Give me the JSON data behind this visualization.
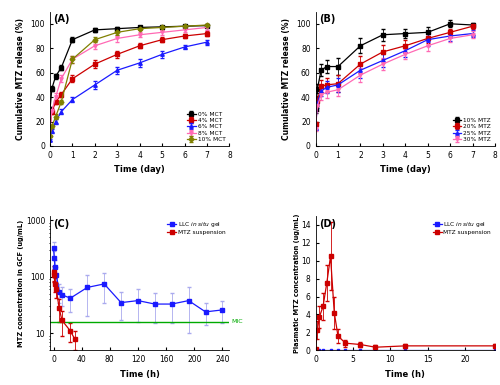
{
  "A": {
    "time": [
      0,
      0.083,
      0.25,
      0.5,
      1,
      2,
      3,
      4,
      5,
      6,
      7
    ],
    "series": {
      "0% MCT": [
        30,
        47,
        57,
        64,
        87,
        95,
        96,
        97,
        97.5,
        98,
        98.5
      ],
      "4% MCT": [
        15,
        28,
        36,
        42,
        55,
        67,
        75,
        82,
        87,
        90,
        92
      ],
      "6% MCT": [
        5,
        12,
        20,
        28,
        38,
        50,
        62,
        68,
        75,
        81,
        85
      ],
      "8% MCT": [
        14,
        29,
        40,
        55,
        71,
        82,
        88,
        91,
        93,
        95,
        97
      ],
      "10% MCT": [
        8,
        16,
        24,
        36,
        71,
        87,
        93,
        96,
        97,
        98,
        99
      ]
    },
    "errors": {
      "0% MCT": [
        2,
        2,
        2,
        2,
        2,
        1.5,
        1.5,
        1,
        1,
        1,
        1
      ],
      "4% MCT": [
        2,
        2,
        2,
        2,
        3,
        3,
        3,
        2,
        2,
        2,
        2
      ],
      "6% MCT": [
        1,
        1.5,
        2,
        2,
        2,
        3,
        3,
        3,
        3,
        2,
        2
      ],
      "8% MCT": [
        2,
        2,
        3,
        3,
        3,
        3,
        3,
        2,
        2,
        2,
        2
      ],
      "10% MCT": [
        1,
        1.5,
        2,
        2,
        3,
        2,
        2,
        1.5,
        1.5,
        1,
        1
      ]
    },
    "colors": [
      "#000000",
      "#cc0000",
      "#1a1aff",
      "#ff69b4",
      "#808000"
    ],
    "markers": [
      "s",
      "s",
      "^",
      "v",
      "D"
    ],
    "ylabel": "Cumulative MTZ release (%)",
    "xlabel": "Time (day)",
    "xlim": [
      0,
      8
    ],
    "ylim": [
      0,
      110
    ],
    "yticks": [
      0,
      20,
      40,
      60,
      80,
      100
    ],
    "label": "(A)"
  },
  "B": {
    "time": [
      0,
      0.083,
      0.25,
      0.5,
      1,
      2,
      3,
      4,
      5,
      6,
      7
    ],
    "series": {
      "10% MTZ": [
        30,
        47,
        62,
        65,
        65,
        82,
        91,
        92,
        93,
        100,
        99
      ],
      "20% MTZ": [
        18,
        37,
        49,
        50,
        51,
        67,
        77,
        82,
        88,
        93,
        98
      ],
      "25% MTZ": [
        15,
        35,
        45,
        48,
        50,
        62,
        70,
        78,
        87,
        90,
        92
      ],
      "30% MTZ": [
        14,
        33,
        42,
        44,
        46,
        58,
        67,
        75,
        82,
        88,
        91
      ]
    },
    "errors": {
      "10% MTZ": [
        3,
        4,
        5,
        5,
        7,
        6,
        5,
        4,
        4,
        3,
        2
      ],
      "20% MTZ": [
        2,
        4,
        5,
        6,
        7,
        7,
        6,
        5,
        4,
        3,
        2
      ],
      "25% MTZ": [
        2,
        4,
        4,
        5,
        6,
        6,
        5,
        5,
        5,
        4,
        3
      ],
      "30% MTZ": [
        2,
        4,
        4,
        5,
        5,
        6,
        5,
        4,
        4,
        3,
        3
      ]
    },
    "colors": [
      "#000000",
      "#cc0000",
      "#1a1aff",
      "#ff69b4"
    ],
    "markers": [
      "s",
      "s",
      "^",
      "v"
    ],
    "ylabel": "Cumulative MTZ release (%)",
    "xlabel": "Time (day)",
    "xlim": [
      0,
      8
    ],
    "ylim": [
      0,
      110
    ],
    "yticks": [
      0,
      20,
      40,
      60,
      80,
      100
    ],
    "label": "(B)"
  },
  "C": {
    "time_llc": [
      0,
      1,
      2,
      4,
      8,
      12,
      24,
      48,
      72,
      96,
      120,
      144,
      168,
      192,
      216,
      240
    ],
    "llc_mean": [
      320,
      220,
      150,
      110,
      55,
      48,
      42,
      65,
      75,
      35,
      38,
      33,
      33,
      38,
      24,
      26
    ],
    "llc_err": [
      100,
      70,
      50,
      40,
      20,
      18,
      18,
      45,
      40,
      18,
      22,
      18,
      18,
      28,
      10,
      11
    ],
    "time_mtz": [
      0,
      1,
      2,
      4,
      8,
      12,
      24,
      30
    ],
    "mtz_mean": [
      120,
      110,
      75,
      60,
      28,
      17,
      11,
      8
    ],
    "mtz_err": [
      35,
      30,
      20,
      18,
      12,
      8,
      4,
      3
    ],
    "mic_value": 16,
    "color_llc": "#1a1aff",
    "color_mtz": "#cc0000",
    "color_mic": "#00aa00",
    "color_llc_err": "#aaaaff",
    "ylabel": "MTZ concentration in GCF (ug/mL)",
    "xlabel": "Time (h)",
    "xlim": [
      -5,
      250
    ],
    "ylim_log": [
      5,
      1200
    ],
    "xticks": [
      0,
      40,
      80,
      120,
      160,
      200,
      240
    ],
    "yticks_log": [
      10,
      100,
      1000
    ],
    "label": "(C)"
  },
  "D": {
    "time_llc": [
      0,
      0.25,
      0.5,
      1,
      2,
      3,
      4,
      6,
      8,
      12,
      24
    ],
    "llc_mean": [
      0.05,
      0.05,
      0.05,
      0.05,
      0.05,
      0.05,
      0.05,
      0.05,
      0.05,
      0.05,
      0.05
    ],
    "time_mtz": [
      0,
      0.25,
      0.5,
      1,
      1.5,
      2,
      2.5,
      3,
      4,
      6,
      8,
      12,
      24
    ],
    "mtz_mean": [
      0.1,
      2.3,
      3.7,
      4.9,
      7.5,
      10.5,
      4.2,
      1.6,
      0.8,
      0.65,
      0.35,
      0.5,
      0.5
    ],
    "mtz_err": [
      0.05,
      1.0,
      1.2,
      1.5,
      2.0,
      3.8,
      1.8,
      0.8,
      0.4,
      0.3,
      0.2,
      0.25,
      0.25
    ],
    "color_llc": "#1a1aff",
    "color_mtz": "#cc0000",
    "ylabel": "Plasmatic MTZ concentration (ug/mL)",
    "xlabel": "Time (h)",
    "xlim": [
      0,
      24
    ],
    "ylim": [
      0,
      15
    ],
    "xticks": [
      0,
      5,
      10,
      15,
      20
    ],
    "yticks": [
      0,
      2,
      4,
      6,
      8,
      10,
      12,
      14
    ],
    "label": "(D)"
  },
  "fig_bg": "#ffffff"
}
